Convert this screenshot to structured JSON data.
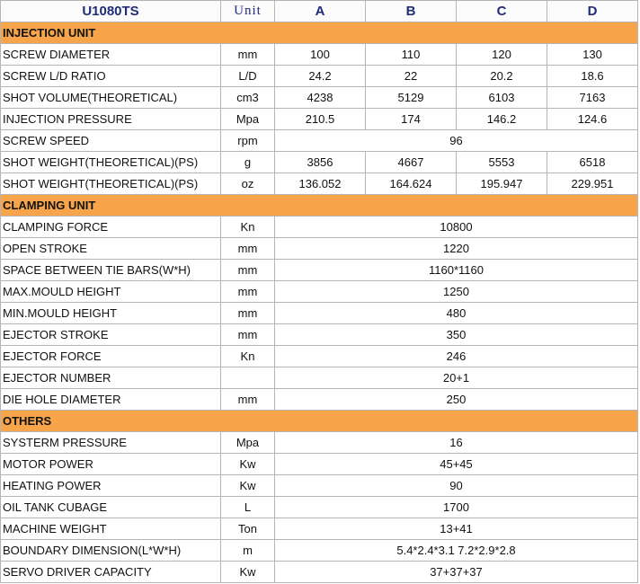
{
  "header": {
    "title": "U1080TS",
    "unit": "Unit",
    "columns": [
      "A",
      "B",
      "C",
      "D"
    ]
  },
  "sections": [
    {
      "title": "INJECTION UNIT",
      "rows": [
        {
          "label": "SCREW DIAMETER",
          "unit": "mm",
          "values": [
            "100",
            "110",
            "120",
            "130"
          ]
        },
        {
          "label": "SCREW L/D RATIO",
          "unit": "L/D",
          "values": [
            "24.2",
            "22",
            "20.2",
            "18.6"
          ]
        },
        {
          "label": "SHOT VOLUME(THEORETICAL)",
          "unit": "cm3",
          "values": [
            "4238",
            "5129",
            "6103",
            "7163"
          ]
        },
        {
          "label": "INJECTION PRESSURE",
          "unit": "Mpa",
          "values": [
            "210.5",
            "174",
            "146.2",
            "124.6"
          ]
        },
        {
          "label": "SCREW SPEED",
          "unit": "rpm",
          "values": [
            "96"
          ]
        },
        {
          "label": "SHOT WEIGHT(THEORETICAL)(PS)",
          "unit": "g",
          "values": [
            "3856",
            "4667",
            "5553",
            "6518"
          ]
        },
        {
          "label": "SHOT WEIGHT(THEORETICAL)(PS)",
          "unit": "oz",
          "values": [
            "136.052",
            "164.624",
            "195.947",
            "229.951"
          ]
        }
      ]
    },
    {
      "title": "CLAMPING UNIT",
      "rows": [
        {
          "label": "CLAMPING FORCE",
          "unit": "Kn",
          "values": [
            "10800"
          ]
        },
        {
          "label": "OPEN STROKE",
          "unit": "mm",
          "values": [
            "1220"
          ]
        },
        {
          "label": "SPACE BETWEEN TIE BARS(W*H)",
          "unit": "mm",
          "values": [
            "1160*1160"
          ]
        },
        {
          "label": "MAX.MOULD HEIGHT",
          "unit": "mm",
          "values": [
            "1250"
          ]
        },
        {
          "label": "MIN.MOULD HEIGHT",
          "unit": "mm",
          "values": [
            "480"
          ]
        },
        {
          "label": "EJECTOR STROKE",
          "unit": "mm",
          "values": [
            "350"
          ]
        },
        {
          "label": "EJECTOR FORCE",
          "unit": "Kn",
          "values": [
            "246"
          ]
        },
        {
          "label": "EJECTOR NUMBER",
          "values": [
            "20+1"
          ]
        },
        {
          "label": "DIE HOLE DIAMETER",
          "unit": "mm",
          "values": [
            "250"
          ]
        }
      ]
    },
    {
      "title": "OTHERS",
      "rows": [
        {
          "label": "SYSTERM PRESSURE",
          "unit": "Mpa",
          "values": [
            "16"
          ]
        },
        {
          "label": "MOTOR POWER",
          "unit": "Kw",
          "values": [
            "45+45"
          ]
        },
        {
          "label": "HEATING POWER",
          "unit": "Kw",
          "values": [
            "90"
          ]
        },
        {
          "label": "OIL TANK CUBAGE",
          "unit": "L",
          "values": [
            "1700"
          ]
        },
        {
          "label": "MACHINE WEIGHT",
          "unit": "Ton",
          "values": [
            "13+41"
          ]
        },
        {
          "label": "BOUNDARY DIMENSION(L*W*H)",
          "unit": "m",
          "values": [
            "5.4*2.4*3.1   7.2*2.9*2.8"
          ]
        },
        {
          "label": "SERVO DRIVER CAPACITY",
          "unit": "Kw",
          "values": [
            "37+37+37"
          ]
        }
      ]
    }
  ]
}
